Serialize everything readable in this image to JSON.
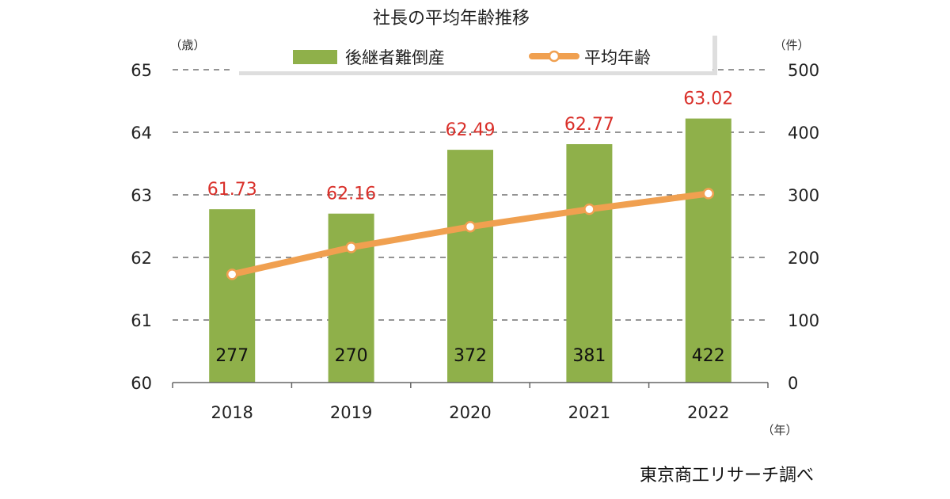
{
  "chart_data": {
    "type": "bar+line",
    "title": "社長の平均年齢推移",
    "categories": [
      "2018",
      "2019",
      "2020",
      "2021",
      "2022"
    ],
    "series": [
      {
        "name": "後継者難倒産",
        "kind": "bar",
        "axis": "right",
        "values": [
          277,
          270,
          372,
          381,
          422
        ],
        "color": "#8fb04a"
      },
      {
        "name": "平均年齢",
        "kind": "line",
        "axis": "left",
        "values": [
          61.73,
          62.16,
          62.49,
          62.77,
          63.02
        ],
        "color": "#f0a050"
      }
    ],
    "y_left": {
      "unit": "（歳）",
      "range": [
        60,
        65
      ],
      "ticks": [
        "60",
        "61",
        "62",
        "63",
        "64",
        "65"
      ]
    },
    "y_right": {
      "unit": "（件）",
      "range": [
        0,
        500
      ],
      "ticks": [
        "0",
        "100",
        "200",
        "300",
        "400",
        "500"
      ]
    },
    "x_unit": "（年）",
    "grid": "dashed horizontal",
    "legend_position": "top",
    "label_colors": {
      "line_labels": "#d9302a",
      "bar_labels": "#111111"
    }
  },
  "source": "東京商工リサーチ調べ"
}
